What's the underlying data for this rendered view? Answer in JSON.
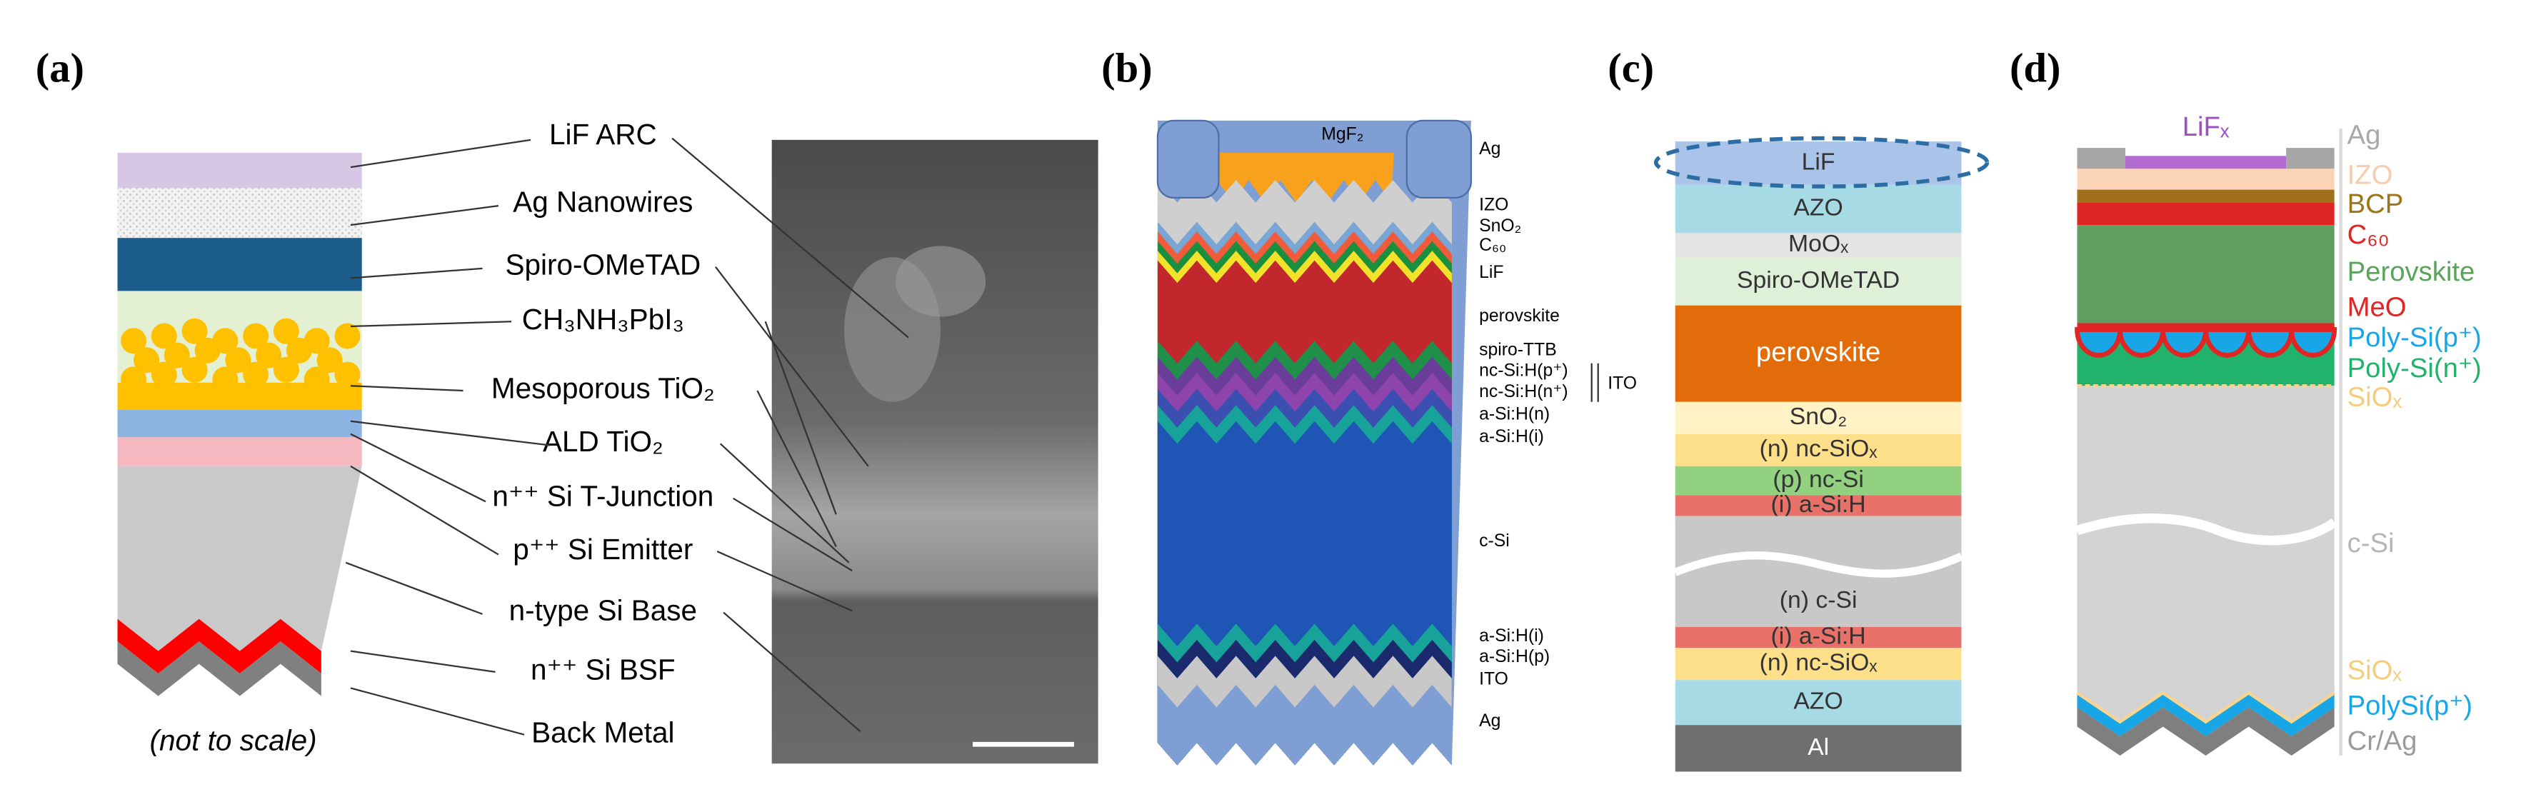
{
  "panels": [
    {
      "label": "(a)",
      "labels": [
        "LiF ARC",
        "Ag Nanowires",
        "Spiro-OMeTAD",
        "CH₃NH₃PbI₃",
        "Mesoporous TiO₂",
        "ALD TiO₂",
        "n⁺⁺ Si T-Junction",
        "p⁺⁺ Si Emitter",
        "n-type Si Base",
        "n⁺⁺ Si BSF",
        "Back Metal"
      ],
      "note": "(not to scale)"
    },
    {
      "label": "(b)",
      "top_label": "MgF₂",
      "labels": [
        "Ag",
        "IZO",
        "SnO₂",
        "C₆₀",
        "LiF",
        "perovskite",
        "spiro-TTB",
        "nc-Si:H(p⁺)",
        "nc-Si:H(n⁺)",
        "a-Si:H(n)",
        "a-Si:H(i)",
        "c-Si",
        "a-Si:H(i)",
        "a-Si:H(p)",
        "ITO",
        "Ag"
      ],
      "bracket_label": "ITO"
    },
    {
      "label": "(c)",
      "layers": [
        "LiF",
        "AZO",
        "MoOₓ",
        "Spiro-OMeTAD",
        "perovskite",
        "SnO₂",
        "(n) nc-SiOₓ",
        "(p) nc-Si",
        "(i) a-Si:H",
        "(n) c-Si",
        "(i) a-Si:H",
        "(n) nc-SiOₓ",
        "AZO",
        "Al"
      ]
    },
    {
      "label": "(d)",
      "top_label": "LiFₓ",
      "labels": [
        "Ag",
        "IZO",
        "BCP",
        "C₆₀",
        "Perovskite",
        "MeO",
        "Poly-Si(p⁺)",
        "Poly-Si(n⁺)",
        "SiOₓ",
        "c-Si",
        "SiOₓ",
        "PolySi(p⁺)",
        "Cr/Ag"
      ]
    }
  ]
}
